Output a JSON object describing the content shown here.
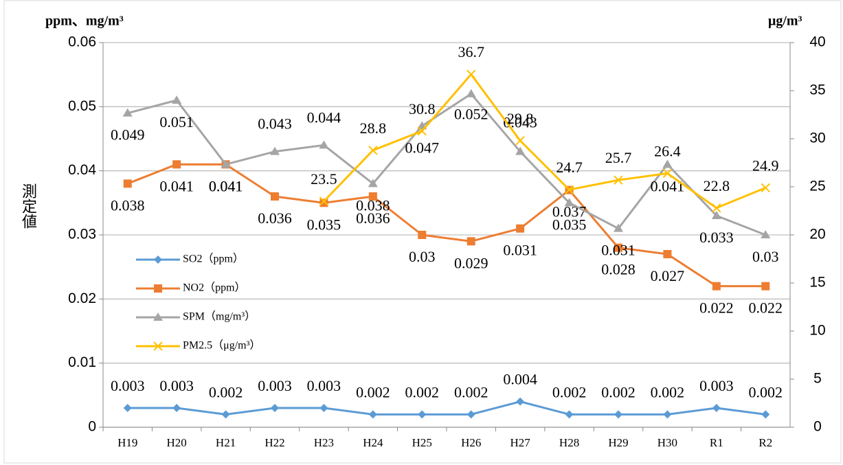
{
  "chart_data": {
    "type": "line",
    "y_title": "ppm、mg/m³",
    "y2_title": "μg/m³",
    "y_label": "測定値",
    "categories": [
      "H19",
      "H20",
      "H21",
      "H22",
      "H23",
      "H24",
      "H25",
      "H26",
      "H27",
      "H28",
      "H29",
      "H30",
      "R1",
      "R2"
    ],
    "series": [
      {
        "name": "SO2（ppm）",
        "color": "#5b9bd5",
        "marker": "diamond",
        "values": [
          0.003,
          0.003,
          0.002,
          0.003,
          0.003,
          0.002,
          0.002,
          0.002,
          0.004,
          0.002,
          0.002,
          0.002,
          0.003,
          0.002
        ]
      },
      {
        "name": "NO2（ppm）",
        "color": "#ed7d31",
        "marker": "square",
        "values": [
          0.038,
          0.041,
          0.041,
          0.036,
          0.035,
          0.036,
          0.03,
          0.029,
          0.031,
          0.037,
          0.028,
          0.027,
          0.022,
          0.022
        ]
      },
      {
        "name": "SPM（mg/m³）",
        "color": "#a5a5a5",
        "marker": "triangle",
        "values": [
          0.049,
          0.051,
          0.041,
          0.043,
          0.044,
          0.038,
          0.047,
          0.052,
          0.043,
          0.035,
          0.031,
          0.041,
          0.033,
          0.03
        ]
      },
      {
        "name": "PM2.5（μg/m³）",
        "color": "#ffc000",
        "marker": "x",
        "axis": "y2",
        "values": [
          null,
          null,
          null,
          null,
          23.5,
          28.8,
          30.8,
          36.7,
          29.8,
          24.7,
          25.7,
          26.4,
          22.8,
          24.9
        ]
      }
    ],
    "ylim": [
      0,
      0.06
    ],
    "yticks": [
      0,
      0.01,
      0.02,
      0.03,
      0.04,
      0.05,
      0.06
    ],
    "y2lim": [
      0,
      40
    ],
    "y2ticks": [
      0,
      5,
      10,
      15,
      20,
      25,
      30,
      35,
      40
    ],
    "grid": true,
    "legend": "left"
  }
}
